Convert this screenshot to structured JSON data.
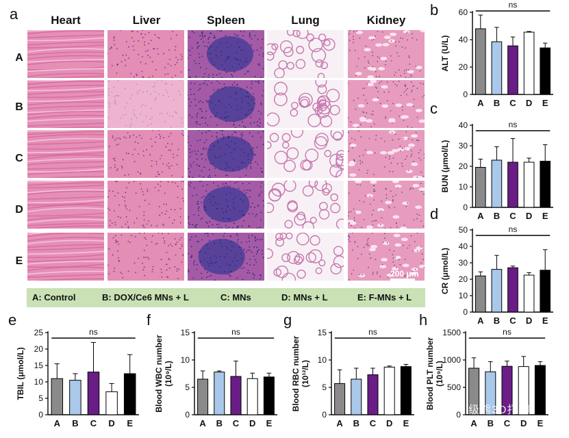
{
  "panel_letters": {
    "a": "a",
    "b": "b",
    "c": "c",
    "d": "d",
    "e": "e",
    "f": "f",
    "g": "g",
    "h": "h"
  },
  "histology": {
    "columns": [
      "Heart",
      "Liver",
      "Spleen",
      "Lung",
      "Kidney"
    ],
    "rows": [
      "A",
      "B",
      "C",
      "D",
      "E"
    ],
    "scale_bar": "200 μm"
  },
  "legend": {
    "items": [
      "A: Control",
      "B: DOX/Ce6 MNs + L",
      "C: MNs",
      "D: MNs + L",
      "E: F-MNs + L"
    ]
  },
  "colors": {
    "A": "#8a8a8a",
    "B": "#a9c8ea",
    "C": "#6a1d86",
    "D": "#ffffff",
    "E": "#000000",
    "legend_bg": "#c9e1b4"
  },
  "watermark": "级熊3D打印",
  "chart_data": [
    {
      "panel": "b",
      "type": "bar",
      "categories": [
        "A",
        "B",
        "C",
        "D",
        "E"
      ],
      "values": [
        48,
        38.5,
        35.5,
        45.5,
        34
      ],
      "errors": [
        10,
        10.5,
        6.5,
        0.5,
        3.5
      ],
      "ylabel": "ALT (U/L)",
      "ylim": [
        0,
        60
      ],
      "yticks": [
        0,
        20,
        40,
        60
      ],
      "annotation": "ns"
    },
    {
      "panel": "c",
      "type": "bar",
      "categories": [
        "A",
        "B",
        "C",
        "D",
        "E"
      ],
      "values": [
        19.5,
        23,
        22,
        22,
        22.5
      ],
      "errors": [
        4,
        6.5,
        11.5,
        2,
        8
      ],
      "ylabel": "BUN (μmol/L)",
      "ylim": [
        0,
        40
      ],
      "yticks": [
        0,
        10,
        20,
        30,
        40
      ],
      "annotation": "ns"
    },
    {
      "panel": "d",
      "type": "bar",
      "categories": [
        "A",
        "B",
        "C",
        "D",
        "E"
      ],
      "values": [
        22,
        26,
        27,
        22.5,
        25.5
      ],
      "errors": [
        2.5,
        8.5,
        1,
        1.5,
        12.5
      ],
      "ylabel": "CR (μmol/L)",
      "ylim": [
        0,
        50
      ],
      "yticks": [
        0,
        10,
        20,
        30,
        40,
        50
      ],
      "annotation": "ns"
    },
    {
      "panel": "e",
      "type": "bar",
      "categories": [
        "A",
        "B",
        "C",
        "D",
        "E"
      ],
      "values": [
        11,
        10.5,
        13,
        7,
        12.5
      ],
      "errors": [
        4.5,
        2,
        9,
        2.5,
        5.8
      ],
      "ylabel": "TBIL (μmol/L)",
      "ylim": [
        0,
        25
      ],
      "yticks": [
        0,
        5,
        10,
        15,
        20,
        25
      ],
      "annotation": "ns"
    },
    {
      "panel": "f",
      "type": "bar",
      "categories": [
        "A",
        "B",
        "C",
        "D",
        "E"
      ],
      "values": [
        6.5,
        7.8,
        7,
        6.6,
        6.9
      ],
      "errors": [
        1.5,
        0.2,
        2.8,
        1,
        0.7
      ],
      "ylabel": "Blood WBC number",
      "ylabel2": "(10⁹/L)",
      "ylim": [
        0,
        15
      ],
      "yticks": [
        0,
        5,
        10,
        15
      ],
      "annotation": "ns"
    },
    {
      "panel": "g",
      "type": "bar",
      "categories": [
        "A",
        "B",
        "C",
        "D",
        "E"
      ],
      "values": [
        5.7,
        6.5,
        7.3,
        8.7,
        8.8
      ],
      "errors": [
        2.5,
        2,
        1.2,
        0.2,
        0.4
      ],
      "ylabel": "Blood RBC number",
      "ylabel2": "(10¹²/L)",
      "ylim": [
        0,
        15
      ],
      "yticks": [
        0,
        5,
        10,
        15
      ],
      "annotation": "ns"
    },
    {
      "panel": "h",
      "type": "bar",
      "categories": [
        "A",
        "B",
        "C",
        "D",
        "E"
      ],
      "values": [
        850,
        785,
        885,
        880,
        900
      ],
      "errors": [
        190,
        185,
        95,
        185,
        70
      ],
      "ylabel": "Blood PLT number",
      "ylabel2": "(10⁹/L)",
      "ylim": [
        0,
        1500
      ],
      "yticks": [
        0,
        500,
        1000,
        1500
      ],
      "annotation": "ns"
    }
  ]
}
